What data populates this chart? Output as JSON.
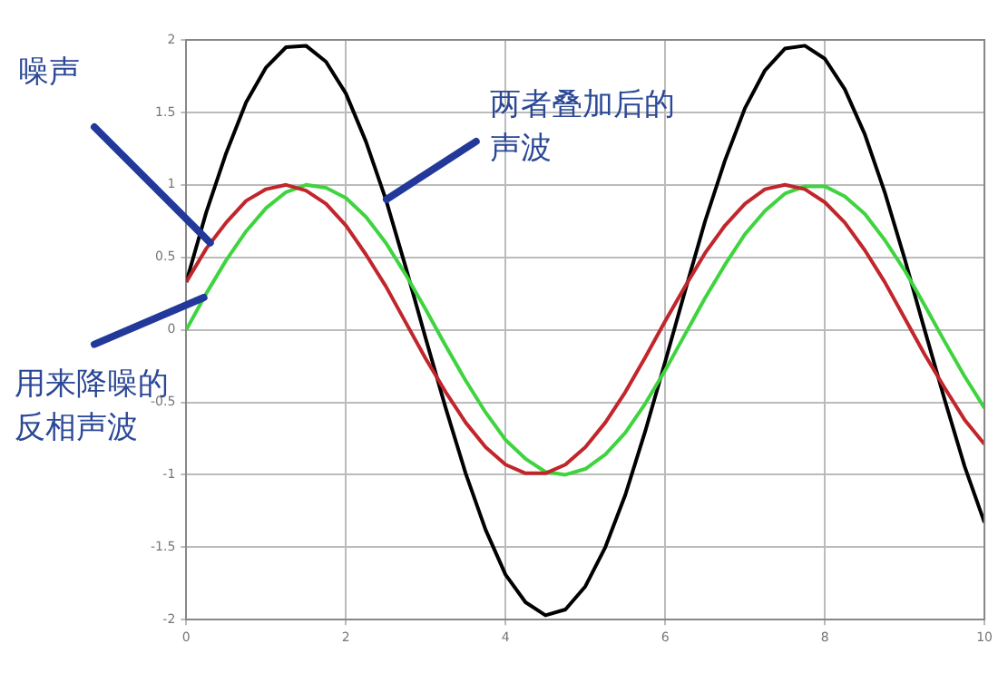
{
  "chart_data": {
    "type": "line",
    "x": [
      0,
      0.25,
      0.5,
      0.75,
      1,
      1.25,
      1.5,
      1.75,
      2,
      2.25,
      2.5,
      2.75,
      3,
      3.25,
      3.5,
      3.75,
      4,
      4.25,
      4.5,
      4.75,
      5,
      5.25,
      5.5,
      5.75,
      6,
      6.25,
      6.5,
      6.75,
      7,
      7.25,
      7.5,
      7.75,
      8,
      8.25,
      8.5,
      8.75,
      9,
      9.25,
      9.5,
      9.75,
      10
    ],
    "series": [
      {
        "color": "#c0262b",
        "values": [
          0.33,
          0.56,
          0.74,
          0.89,
          0.97,
          1.0,
          0.96,
          0.87,
          0.72,
          0.52,
          0.3,
          0.05,
          -0.2,
          -0.43,
          -0.64,
          -0.81,
          -0.93,
          -0.99,
          -0.99,
          -0.93,
          -0.81,
          -0.64,
          -0.43,
          -0.19,
          0.06,
          0.3,
          0.53,
          0.72,
          0.87,
          0.97,
          1.0,
          0.97,
          0.88,
          0.74,
          0.55,
          0.33,
          0.08,
          -0.17,
          -0.4,
          -0.62,
          -0.79
        ]
      },
      {
        "color": "#3fd43f",
        "values": [
          0,
          0.25,
          0.48,
          0.68,
          0.84,
          0.95,
          1.0,
          0.98,
          0.91,
          0.78,
          0.6,
          0.38,
          0.14,
          -0.11,
          -0.35,
          -0.57,
          -0.76,
          -0.89,
          -0.98,
          -1.0,
          -0.96,
          -0.86,
          -0.71,
          -0.51,
          -0.28,
          -0.03,
          0.22,
          0.45,
          0.66,
          0.82,
          0.94,
          0.99,
          0.99,
          0.92,
          0.8,
          0.62,
          0.41,
          0.17,
          -0.08,
          -0.32,
          -0.54
        ]
      },
      {
        "color": "#000000",
        "values": [
          0.33,
          0.81,
          1.22,
          1.57,
          1.81,
          1.95,
          1.96,
          1.85,
          1.63,
          1.3,
          0.9,
          0.43,
          -0.06,
          -0.54,
          -0.99,
          -1.38,
          -1.69,
          -1.88,
          -1.97,
          -1.93,
          -1.77,
          -1.5,
          -1.14,
          -0.7,
          -0.22,
          0.27,
          0.75,
          1.17,
          1.53,
          1.79,
          1.94,
          1.96,
          1.87,
          1.66,
          1.35,
          0.95,
          0.49,
          0,
          -0.48,
          -0.94,
          -1.33
        ]
      }
    ],
    "xlim": [
      0,
      10
    ],
    "xticks": [
      0,
      2,
      4,
      6,
      8,
      10
    ],
    "ylim": [
      -2,
      2
    ],
    "yticks": [
      -2,
      -1.5,
      -1,
      -0.5,
      0,
      0.5,
      1,
      1.5,
      2
    ],
    "grid": true,
    "legend": false,
    "marker": "none",
    "line_style": "solid",
    "annotations": [
      {
        "text": "噪声",
        "x": 0.3,
        "y": 0.6
      },
      {
        "text": "用来降噪的反相声波",
        "x": 0.22,
        "y": 0.22
      },
      {
        "text": "两者叠加后的声波",
        "x": 2.5,
        "y": 0.9
      }
    ]
  }
}
